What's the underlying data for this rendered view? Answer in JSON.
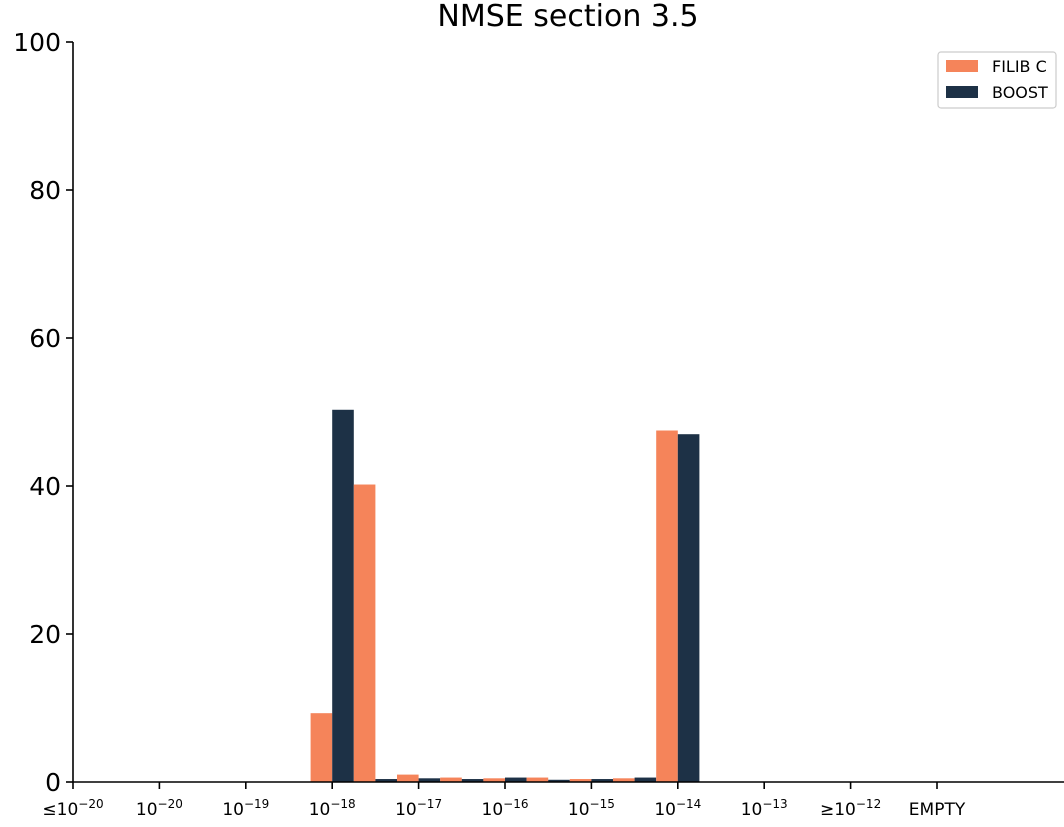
{
  "chart_data": {
    "type": "bar",
    "title": "NMSE section 3.5",
    "xlabel": "",
    "ylabel": "",
    "ylim": [
      0,
      100
    ],
    "yticks": [
      "0",
      "20",
      "40",
      "60",
      "80",
      "100"
    ],
    "xticks": [
      {
        "prefix": "≤",
        "base": "10",
        "exp": "−20"
      },
      {
        "prefix": "",
        "base": "10",
        "exp": "−20"
      },
      {
        "prefix": "",
        "base": "10",
        "exp": "−19"
      },
      {
        "prefix": "",
        "base": "10",
        "exp": "−18"
      },
      {
        "prefix": "",
        "base": "10",
        "exp": "−17"
      },
      {
        "prefix": "",
        "base": "10",
        "exp": "−16"
      },
      {
        "prefix": "",
        "base": "10",
        "exp": "−15"
      },
      {
        "prefix": "",
        "base": "10",
        "exp": "−14"
      },
      {
        "prefix": "",
        "base": "10",
        "exp": "−13"
      },
      {
        "prefix": "≥",
        "base": "10",
        "exp": "−12"
      },
      {
        "prefix": "",
        "base": "EMPTY",
        "exp": ""
      }
    ],
    "bins": [
      "≤10^-20",
      "10^-20",
      "10^-19",
      "10^-18",
      "10^-17",
      "10^-16",
      "",
      "10^-15",
      "",
      "10^-14",
      "",
      "10^-13",
      "",
      "≥10^-12",
      "EMPTY"
    ],
    "series": [
      {
        "name": "FILIB C",
        "color": "#f5845a",
        "values": [
          0,
          0,
          0,
          0,
          0,
          9.3,
          40.2,
          1.0,
          0.6,
          0.5,
          0.6,
          0.4,
          0.5,
          47.5,
          0
        ]
      },
      {
        "name": "BOOST",
        "color": "#1d3146",
        "values": [
          0,
          0,
          0,
          0,
          0,
          50.3,
          0.4,
          0.5,
          0.4,
          0.6,
          0.3,
          0.4,
          0.6,
          47.0,
          0
        ]
      }
    ],
    "grid": false,
    "legend_position": "top-right"
  }
}
